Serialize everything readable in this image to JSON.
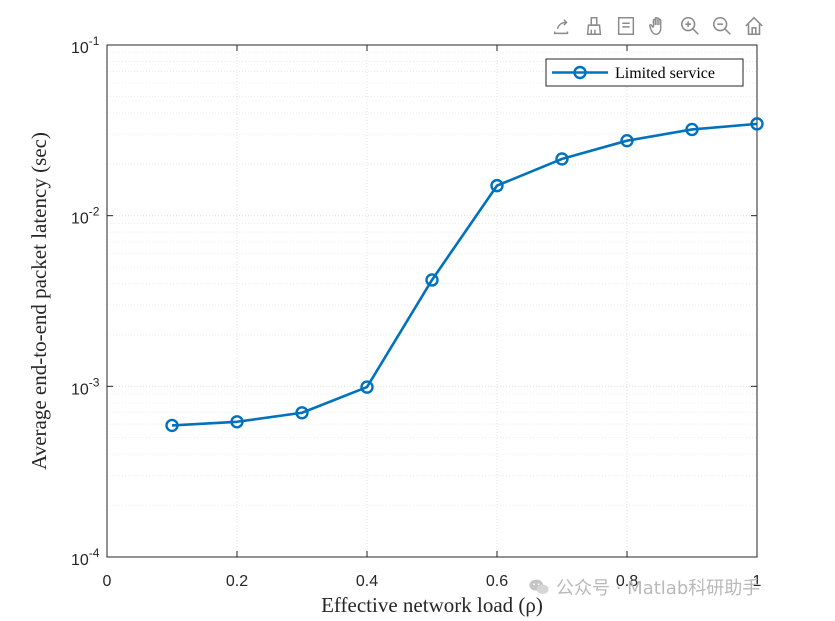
{
  "toolbar": {
    "icons": [
      "export-icon",
      "brush-icon",
      "data-tips-icon",
      "pan-icon",
      "zoom-in-icon",
      "zoom-out-icon",
      "home-icon"
    ]
  },
  "chart_data": {
    "type": "line",
    "xlabel": "Effective network load (ρ)",
    "ylabel": "Average end-to-end packet latency (sec)",
    "xlim": [
      0,
      1
    ],
    "ylim": [
      0.0001,
      0.1
    ],
    "yscale": "log",
    "grid": true,
    "xticks": [
      "0",
      "0.2",
      "0.4",
      "0.6",
      "0.8",
      "1"
    ],
    "yticks": [
      {
        "base": "10",
        "exp": "-4"
      },
      {
        "base": "10",
        "exp": "-3"
      },
      {
        "base": "10",
        "exp": "-2"
      },
      {
        "base": "10",
        "exp": "-1"
      }
    ],
    "legend_position": "top-right",
    "series": [
      {
        "name": "Limited service",
        "color": "#0072BD",
        "marker": "circle",
        "x": [
          0.1,
          0.2,
          0.3,
          0.4,
          0.5,
          0.6,
          0.7,
          0.8,
          0.9,
          1.0
        ],
        "y": [
          0.00059,
          0.00062,
          0.0007,
          0.00099,
          0.0042,
          0.015,
          0.0215,
          0.0275,
          0.032,
          0.0345
        ]
      }
    ]
  },
  "watermark": {
    "text": "公众号 · Matlab科研助手"
  }
}
